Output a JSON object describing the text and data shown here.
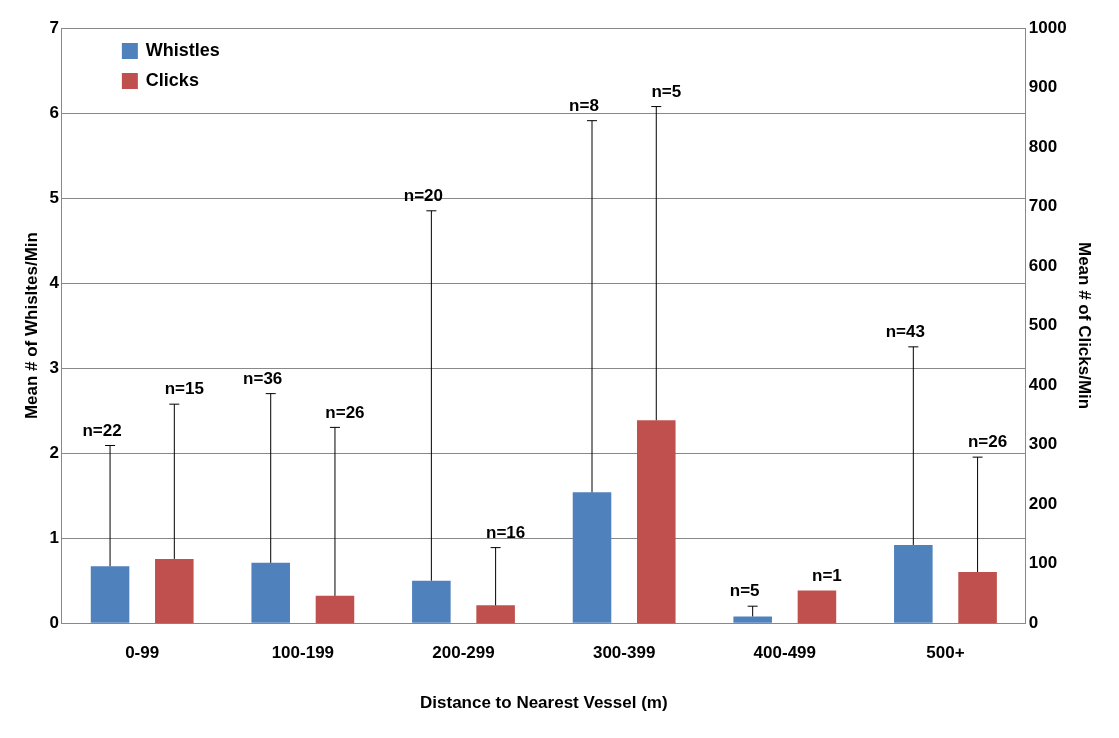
{
  "chart_data": {
    "type": "bar",
    "xlabel": "Distance to Nearest Vessel (m)",
    "ylabel": "Mean # of Whisltes/Min",
    "y2label": "Mean # of Clicks/Min",
    "categories": [
      "0-99",
      "100-199",
      "200-299",
      "300-399",
      "400-499",
      "500+"
    ],
    "series": [
      {
        "name": "Whistles",
        "color": "#4f81bd",
        "values": [
          0.67,
          0.71,
          0.5,
          1.54,
          0.08,
          0.92
        ],
        "errors": [
          [
            0.67,
            2.09
          ],
          [
            0.71,
            2.7
          ],
          [
            0.5,
            4.85
          ],
          [
            1.54,
            5.91
          ],
          [
            0.08,
            0.2
          ],
          [
            0.92,
            3.25
          ]
        ]
      },
      {
        "name": "Clicks",
        "color": "#c0504d",
        "axis": "y2",
        "values": [
          108,
          46,
          30,
          341,
          55,
          86
        ],
        "errors": [
          [
            108,
            368
          ],
          [
            46,
            329
          ],
          [
            30,
            127
          ],
          [
            341,
            868
          ],
          null,
          [
            86,
            279
          ]
        ]
      }
    ],
    "annotations": [
      "n=22",
      "n=15",
      "n=36",
      "n=26",
      "n=20",
      "n=16",
      "n=8",
      "n=5",
      "n=5",
      "n=1",
      "n=43",
      "n=26"
    ],
    "ylim": [
      0,
      7
    ],
    "yticks": [
      0,
      1,
      2,
      3,
      4,
      5,
      6,
      7
    ],
    "y2lim": [
      0,
      1000
    ],
    "y2ticks": [
      0,
      100,
      200,
      300,
      400,
      500,
      600,
      700,
      800,
      900,
      1000
    ],
    "grid": "y",
    "legend": "top left"
  }
}
